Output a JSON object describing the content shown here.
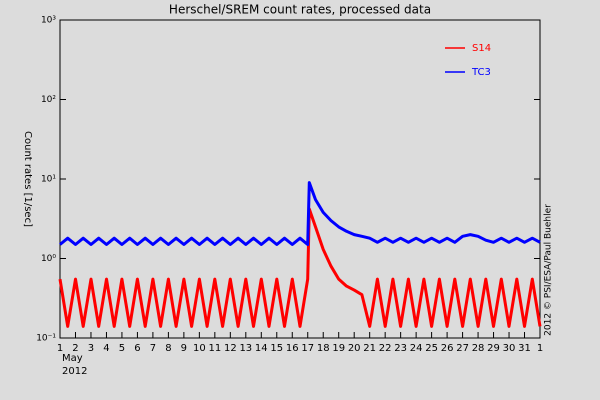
{
  "chart_data": {
    "type": "line",
    "title": "Herschel/SREM count rates, processed data",
    "y_label": "Count rates [1/sec]",
    "x_sublabels": [
      "May",
      "2012"
    ],
    "credit": "2012 © PSI/ESA/Paul Buehler",
    "log_y": true,
    "legend_position": "top-right",
    "x": [
      1,
      1.5,
      2,
      2.5,
      3,
      3.5,
      4,
      4.5,
      5,
      5.5,
      6,
      6.5,
      7,
      7.5,
      8,
      8.5,
      9,
      9.5,
      10,
      10.5,
      11,
      11.5,
      12,
      12.5,
      13,
      13.5,
      14,
      14.5,
      15,
      15.5,
      16,
      16.5,
      17,
      17.1,
      17.5,
      18,
      18.5,
      19,
      19.5,
      20,
      20.5,
      21,
      21.5,
      22,
      22.5,
      23,
      23.5,
      24,
      24.5,
      25,
      25.5,
      26,
      26.5,
      27,
      27.5,
      28,
      28.5,
      29,
      29.5,
      30,
      30.5,
      31,
      31.5,
      32
    ],
    "series": [
      {
        "name": "S14",
        "color": "#ff0000",
        "values": [
          0.55,
          0.14,
          0.55,
          0.14,
          0.55,
          0.14,
          0.55,
          0.14,
          0.55,
          0.14,
          0.55,
          0.14,
          0.55,
          0.14,
          0.55,
          0.14,
          0.55,
          0.14,
          0.55,
          0.14,
          0.55,
          0.14,
          0.55,
          0.14,
          0.55,
          0.14,
          0.55,
          0.14,
          0.55,
          0.14,
          0.55,
          0.14,
          0.55,
          4.2,
          2.5,
          1.3,
          0.8,
          0.55,
          0.45,
          0.4,
          0.35,
          0.14,
          0.55,
          0.14,
          0.55,
          0.14,
          0.55,
          0.14,
          0.55,
          0.14,
          0.55,
          0.14,
          0.55,
          0.14,
          0.55,
          0.14,
          0.55,
          0.14,
          0.55,
          0.14,
          0.55,
          0.14,
          0.55,
          0.14
        ]
      },
      {
        "name": "TC3",
        "color": "#0000ff",
        "values": [
          1.5,
          1.8,
          1.5,
          1.8,
          1.5,
          1.8,
          1.5,
          1.8,
          1.5,
          1.8,
          1.5,
          1.8,
          1.5,
          1.8,
          1.5,
          1.8,
          1.5,
          1.8,
          1.5,
          1.8,
          1.5,
          1.8,
          1.5,
          1.8,
          1.5,
          1.8,
          1.5,
          1.8,
          1.5,
          1.8,
          1.5,
          1.8,
          1.5,
          9,
          5.5,
          3.8,
          3,
          2.5,
          2.2,
          2,
          1.9,
          1.8,
          1.6,
          1.8,
          1.6,
          1.8,
          1.6,
          1.8,
          1.6,
          1.8,
          1.6,
          1.8,
          1.6,
          1.9,
          2,
          1.9,
          1.7,
          1.6,
          1.8,
          1.6,
          1.8,
          1.6,
          1.8,
          1.6
        ]
      }
    ],
    "xlim": [
      1,
      32
    ],
    "xticks": [
      1,
      2,
      3,
      4,
      5,
      6,
      7,
      8,
      9,
      10,
      11,
      12,
      13,
      14,
      15,
      16,
      17,
      18,
      19,
      20,
      21,
      22,
      23,
      24,
      25,
      26,
      27,
      28,
      29,
      30,
      31,
      {
        "value": 32,
        "label": "1"
      }
    ],
    "ylim": [
      0.1,
      1000
    ],
    "yticks": [
      {
        "value": 0.1,
        "label": "10⁻¹"
      },
      {
        "value": 1,
        "label": "10⁰"
      },
      {
        "value": 10,
        "label": "10¹"
      },
      {
        "value": 100,
        "label": "10²"
      },
      {
        "value": 1000,
        "label": "10³"
      }
    ]
  }
}
